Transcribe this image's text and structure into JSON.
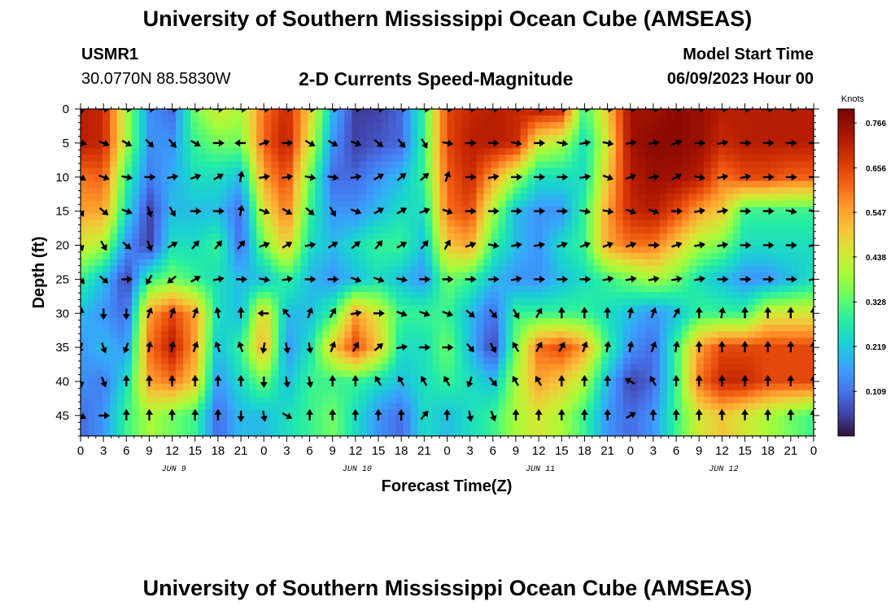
{
  "header": {
    "title": "University of Southern Mississippi Ocean Cube (AMSEAS)",
    "footer_title": "University of Southern Mississippi Ocean Cube (AMSEAS)",
    "station": "USMR1",
    "coords": "30.0770N  88.5830W",
    "subtitle": "2-D Currents Speed-Magnitude",
    "model_start_label": "Model Start Time",
    "model_start_value": "06/09/2023 Hour 00"
  },
  "chart_data": {
    "type": "heatmap",
    "title": "2-D Currents Speed-Magnitude",
    "xlabel": "Forecast Time(Z)",
    "ylabel": "Depth (ft)",
    "x_tick_labels": [
      "0",
      "3",
      "6",
      "9",
      "12",
      "15",
      "18",
      "21",
      "0",
      "3",
      "6",
      "9",
      "12",
      "15",
      "18",
      "21",
      "0",
      "3",
      "6",
      "9",
      "12",
      "15",
      "18",
      "21",
      "0",
      "3",
      "6",
      "9",
      "12",
      "15",
      "18",
      "21",
      "0"
    ],
    "x_hours": [
      0,
      96
    ],
    "day_labels": [
      {
        "label": "JUN 9",
        "hour": 12
      },
      {
        "label": "JUN 10",
        "hour": 36
      },
      {
        "label": "JUN 11",
        "hour": 60
      },
      {
        "label": "JUN 12",
        "hour": 84
      }
    ],
    "y_ticks": [
      0,
      5,
      10,
      15,
      20,
      25,
      30,
      35,
      40,
      45
    ],
    "y_tick_labels": [
      "0",
      "5",
      "10",
      "15",
      "20",
      "25",
      "30",
      "35",
      "40",
      "45"
    ],
    "ylim": [
      0,
      48
    ],
    "colorbar": {
      "title": "Knots",
      "ticks": [
        "0.766",
        "0.656",
        "0.547",
        "0.438",
        "0.328",
        "0.219",
        "0.109"
      ],
      "range": [
        0.0,
        0.8
      ]
    },
    "vector_depths": [
      0,
      5,
      10,
      15,
      20,
      25,
      30,
      35,
      40,
      45
    ],
    "vector_hours": [
      0,
      3,
      6,
      9,
      12,
      15,
      18,
      21,
      24,
      27,
      30,
      33,
      36,
      39,
      42,
      45,
      48,
      51,
      54,
      57,
      60,
      63,
      66,
      69,
      72,
      75,
      78,
      81,
      84,
      87,
      90,
      93,
      96
    ],
    "speed_grid": [
      [
        0.72,
        0.7,
        0.4,
        0.15,
        0.1,
        0.35,
        0.45,
        0.4,
        0.6,
        0.7,
        0.5,
        0.2,
        0.05,
        0.05,
        0.1,
        0.3,
        0.65,
        0.7,
        0.72,
        0.7,
        0.72,
        0.7,
        0.3,
        0.5,
        0.75,
        0.75,
        0.78,
        0.76,
        0.72,
        0.72,
        0.72,
        0.72,
        0.72
      ],
      [
        0.72,
        0.7,
        0.4,
        0.15,
        0.15,
        0.3,
        0.35,
        0.35,
        0.62,
        0.72,
        0.45,
        0.15,
        0.05,
        0.08,
        0.1,
        0.3,
        0.65,
        0.72,
        0.72,
        0.7,
        0.45,
        0.4,
        0.25,
        0.45,
        0.75,
        0.78,
        0.78,
        0.76,
        0.7,
        0.72,
        0.72,
        0.72,
        0.72
      ],
      [
        0.6,
        0.62,
        0.3,
        0.12,
        0.18,
        0.25,
        0.25,
        0.2,
        0.55,
        0.65,
        0.35,
        0.1,
        0.1,
        0.15,
        0.2,
        0.3,
        0.62,
        0.7,
        0.55,
        0.4,
        0.25,
        0.25,
        0.25,
        0.5,
        0.72,
        0.76,
        0.75,
        0.72,
        0.6,
        0.65,
        0.65,
        0.62,
        0.62
      ],
      [
        0.55,
        0.55,
        0.25,
        0.05,
        0.2,
        0.2,
        0.2,
        0.1,
        0.45,
        0.6,
        0.3,
        0.15,
        0.15,
        0.2,
        0.25,
        0.25,
        0.6,
        0.65,
        0.4,
        0.2,
        0.15,
        0.15,
        0.3,
        0.55,
        0.7,
        0.72,
        0.65,
        0.55,
        0.5,
        0.3,
        0.3,
        0.3,
        0.3
      ],
      [
        0.45,
        0.4,
        0.15,
        0.05,
        0.25,
        0.25,
        0.3,
        0.1,
        0.35,
        0.5,
        0.25,
        0.2,
        0.25,
        0.3,
        0.3,
        0.2,
        0.5,
        0.55,
        0.3,
        0.2,
        0.15,
        0.25,
        0.3,
        0.55,
        0.6,
        0.6,
        0.5,
        0.4,
        0.35,
        0.25,
        0.25,
        0.25,
        0.25
      ],
      [
        0.3,
        0.2,
        0.05,
        0.3,
        0.35,
        0.3,
        0.25,
        0.2,
        0.2,
        0.3,
        0.2,
        0.15,
        0.2,
        0.25,
        0.2,
        0.15,
        0.35,
        0.3,
        0.2,
        0.15,
        0.15,
        0.2,
        0.25,
        0.3,
        0.35,
        0.4,
        0.35,
        0.25,
        0.2,
        0.15,
        0.15,
        0.2,
        0.25
      ],
      [
        0.2,
        0.15,
        0.1,
        0.55,
        0.65,
        0.55,
        0.25,
        0.2,
        0.5,
        0.2,
        0.2,
        0.3,
        0.55,
        0.45,
        0.3,
        0.3,
        0.3,
        0.2,
        0.1,
        0.3,
        0.3,
        0.3,
        0.3,
        0.25,
        0.2,
        0.15,
        0.2,
        0.3,
        0.3,
        0.3,
        0.45,
        0.45,
        0.45
      ],
      [
        0.15,
        0.2,
        0.15,
        0.6,
        0.72,
        0.55,
        0.2,
        0.3,
        0.55,
        0.15,
        0.25,
        0.5,
        0.65,
        0.5,
        0.25,
        0.25,
        0.35,
        0.2,
        0.05,
        0.35,
        0.6,
        0.65,
        0.55,
        0.3,
        0.15,
        0.1,
        0.3,
        0.55,
        0.65,
        0.65,
        0.65,
        0.65,
        0.65
      ],
      [
        0.15,
        0.12,
        0.25,
        0.55,
        0.6,
        0.5,
        0.15,
        0.25,
        0.35,
        0.2,
        0.3,
        0.3,
        0.3,
        0.25,
        0.2,
        0.25,
        0.3,
        0.25,
        0.2,
        0.4,
        0.55,
        0.5,
        0.4,
        0.2,
        0.05,
        0.1,
        0.3,
        0.6,
        0.7,
        0.7,
        0.65,
        0.65,
        0.65
      ],
      [
        0.1,
        0.15,
        0.3,
        0.4,
        0.35,
        0.3,
        0.1,
        0.2,
        0.2,
        0.25,
        0.3,
        0.35,
        0.25,
        0.15,
        0.1,
        0.25,
        0.2,
        0.25,
        0.3,
        0.4,
        0.45,
        0.4,
        0.3,
        0.15,
        0.1,
        0.15,
        0.3,
        0.45,
        0.5,
        0.45,
        0.4,
        0.35,
        0.3
      ]
    ],
    "direction_grid_deg": [
      [
        180,
        90,
        90,
        90,
        90,
        90,
        90,
        90,
        90,
        90,
        90,
        90,
        90,
        90,
        90,
        90,
        90,
        90,
        90,
        90,
        90,
        90,
        90,
        90,
        90,
        90,
        90,
        90,
        90,
        90,
        90,
        90,
        90
      ],
      [
        100,
        110,
        120,
        135,
        140,
        120,
        90,
        270,
        70,
        90,
        120,
        120,
        110,
        130,
        140,
        150,
        100,
        90,
        90,
        100,
        90,
        100,
        80,
        100,
        80,
        80,
        70,
        90,
        80,
        90,
        90,
        90,
        90
      ],
      [
        120,
        110,
        100,
        90,
        80,
        70,
        60,
        10,
        80,
        80,
        100,
        100,
        80,
        60,
        50,
        50,
        20,
        90,
        80,
        90,
        90,
        90,
        80,
        110,
        70,
        80,
        60,
        100,
        80,
        80,
        90,
        90,
        90
      ],
      [
        150,
        130,
        110,
        160,
        150,
        90,
        90,
        10,
        110,
        120,
        130,
        150,
        110,
        60,
        60,
        70,
        110,
        90,
        90,
        90,
        90,
        90,
        100,
        100,
        110,
        110,
        90,
        80,
        80,
        90,
        90,
        100,
        100
      ],
      [
        160,
        150,
        130,
        160,
        60,
        40,
        40,
        40,
        70,
        60,
        80,
        60,
        50,
        40,
        60,
        40,
        30,
        70,
        100,
        80,
        80,
        70,
        70,
        70,
        70,
        90,
        70,
        80,
        80,
        90,
        90,
        90,
        80
      ],
      [
        140,
        130,
        90,
        210,
        230,
        60,
        80,
        90,
        100,
        80,
        90,
        90,
        110,
        110,
        100,
        90,
        90,
        90,
        90,
        80,
        90,
        90,
        90,
        80,
        80,
        80,
        80,
        80,
        90,
        90,
        90,
        90,
        80
      ],
      [
        10,
        180,
        180,
        20,
        20,
        20,
        350,
        0,
        270,
        320,
        20,
        30,
        80,
        90,
        110,
        110,
        110,
        130,
        140,
        150,
        30,
        0,
        0,
        0,
        10,
        20,
        30,
        0,
        10,
        0,
        0,
        0,
        0
      ],
      [
        200,
        160,
        200,
        10,
        10,
        20,
        340,
        340,
        190,
        170,
        170,
        20,
        30,
        50,
        80,
        90,
        90,
        140,
        150,
        330,
        30,
        30,
        20,
        10,
        10,
        20,
        10,
        0,
        0,
        0,
        0,
        0,
        0
      ],
      [
        170,
        160,
        0,
        0,
        0,
        0,
        0,
        0,
        180,
        170,
        170,
        0,
        0,
        330,
        330,
        330,
        330,
        200,
        140,
        330,
        330,
        0,
        0,
        0,
        300,
        330,
        0,
        0,
        0,
        0,
        0,
        0,
        0
      ],
      [
        120,
        90,
        0,
        0,
        0,
        0,
        0,
        180,
        170,
        120,
        0,
        0,
        0,
        0,
        0,
        40,
        0,
        170,
        160,
        0,
        0,
        0,
        0,
        0,
        60,
        0,
        0,
        0,
        0,
        0,
        0,
        0,
        0
      ]
    ]
  }
}
